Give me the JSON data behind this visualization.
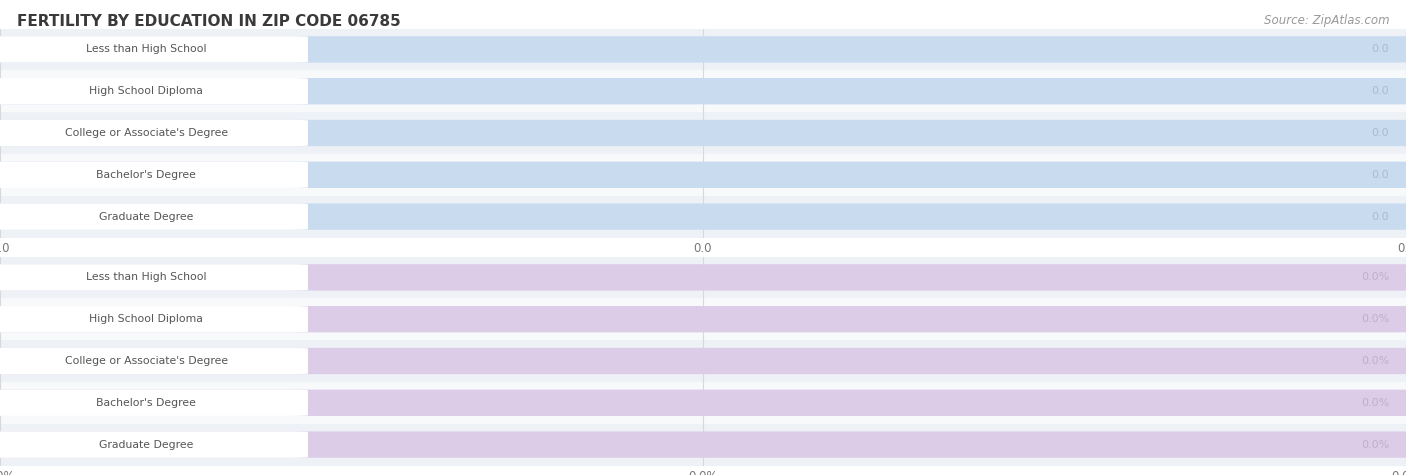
{
  "title": "FERTILITY BY EDUCATION IN ZIP CODE 06785",
  "source_text": "Source: ZipAtlas.com",
  "top_categories": [
    "Less than High School",
    "High School Diploma",
    "College or Associate's Degree",
    "Bachelor's Degree",
    "Graduate Degree"
  ],
  "top_values": [
    0.0,
    0.0,
    0.0,
    0.0,
    0.0
  ],
  "top_bar_bg": "#c8dbef",
  "top_label_pill": "#ffffff",
  "top_val_color": "#aabcce",
  "top_tick_suffix": "",
  "bottom_categories": [
    "Less than High School",
    "High School Diploma",
    "College or Associate's Degree",
    "Bachelor's Degree",
    "Graduate Degree"
  ],
  "bottom_values": [
    0.0,
    0.0,
    0.0,
    0.0,
    0.0
  ],
  "bottom_bar_bg": "#dccce8",
  "bottom_label_pill": "#ffffff",
  "bottom_val_color": "#c0aed0",
  "bottom_tick_suffix": "%",
  "label_color": "#555555",
  "title_color": "#3a3a3a",
  "source_color": "#999999",
  "row_bg_colors": [
    "#eef2f6",
    "#f8f9fb"
  ],
  "bg_color": "#ffffff",
  "grid_color": "#d8d8d8",
  "figsize": [
    14.06,
    4.75
  ],
  "dpi": 100
}
